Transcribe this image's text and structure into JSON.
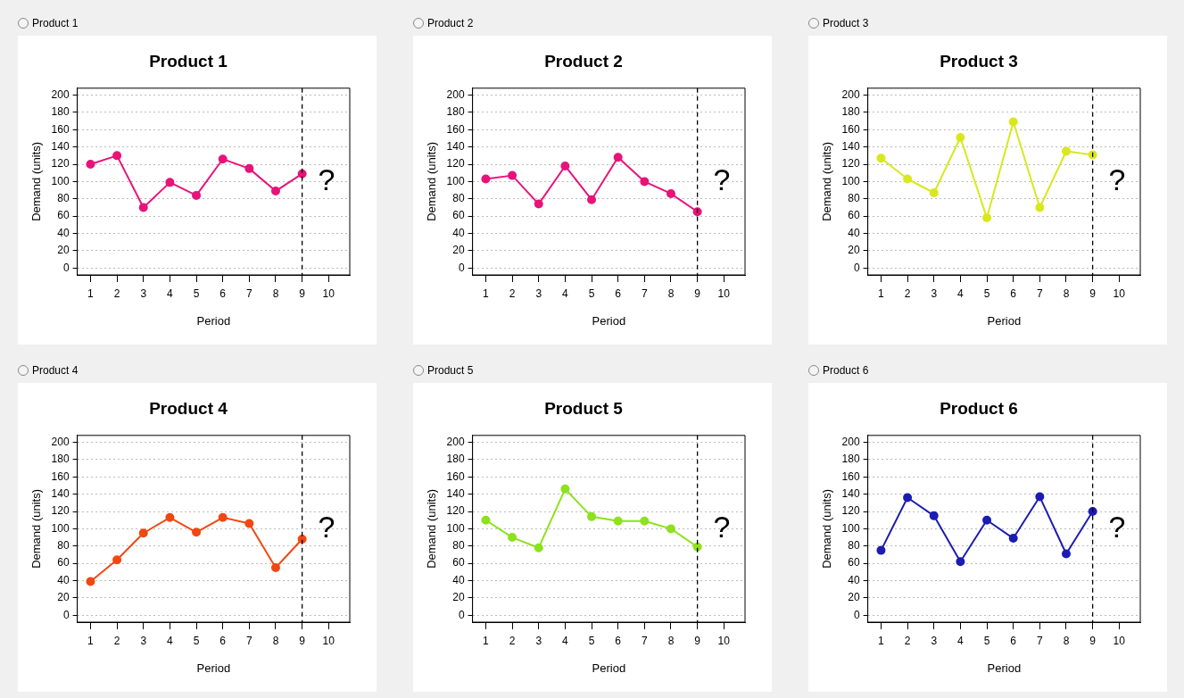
{
  "chart_data": [
    {
      "type": "line",
      "title": "Product 1",
      "annotations": [
        "Product 1",
        "?"
      ],
      "xlabel": "Period",
      "ylabel": "Demand (units)",
      "x": [
        1,
        2,
        3,
        4,
        5,
        6,
        7,
        8,
        9
      ],
      "series": [
        {
          "color": "#e8137a",
          "values": [
            120,
            130,
            70,
            99,
            84,
            126,
            115,
            89,
            109
          ]
        }
      ],
      "xlim": [
        0.5,
        10.8
      ],
      "xticks": [
        1,
        2,
        3,
        4,
        5,
        6,
        7,
        8,
        9,
        10
      ],
      "ylim": [
        -8,
        208
      ],
      "yticks": [
        0,
        20,
        40,
        60,
        80,
        100,
        120,
        140,
        160,
        180,
        200
      ],
      "grid": "y",
      "marker": "circle",
      "line_style": "solid",
      "legend": false,
      "ref_lines": [
        {
          "axis": "x",
          "value": 9,
          "color": "#000000",
          "line_style": "dashed"
        }
      ]
    },
    {
      "type": "line",
      "title": "Product 2",
      "annotations": [
        "Product 2",
        "?"
      ],
      "xlabel": "Period",
      "ylabel": "Demand (units)",
      "x": [
        1,
        2,
        3,
        4,
        5,
        6,
        7,
        8,
        9
      ],
      "series": [
        {
          "color": "#e8137a",
          "values": [
            103,
            107,
            74,
            118,
            79,
            128,
            100,
            86,
            65
          ]
        }
      ],
      "xlim": [
        0.5,
        10.8
      ],
      "xticks": [
        1,
        2,
        3,
        4,
        5,
        6,
        7,
        8,
        9,
        10
      ],
      "ylim": [
        -8,
        208
      ],
      "yticks": [
        0,
        20,
        40,
        60,
        80,
        100,
        120,
        140,
        160,
        180,
        200
      ],
      "grid": "y",
      "marker": "circle",
      "line_style": "solid",
      "legend": false,
      "ref_lines": [
        {
          "axis": "x",
          "value": 9,
          "color": "#000000",
          "line_style": "dashed"
        }
      ]
    },
    {
      "type": "line",
      "title": "Product 3",
      "annotations": [
        "Product 3",
        "?"
      ],
      "xlabel": "Period",
      "ylabel": "Demand (units)",
      "x": [
        1,
        2,
        3,
        4,
        5,
        6,
        7,
        8,
        9
      ],
      "series": [
        {
          "color": "#d8e81c",
          "values": [
            127,
            103,
            87,
            151,
            58,
            169,
            70,
            135,
            131
          ]
        }
      ],
      "xlim": [
        0.5,
        10.8
      ],
      "xticks": [
        1,
        2,
        3,
        4,
        5,
        6,
        7,
        8,
        9,
        10
      ],
      "ylim": [
        -8,
        208
      ],
      "yticks": [
        0,
        20,
        40,
        60,
        80,
        100,
        120,
        140,
        160,
        180,
        200
      ],
      "grid": "y",
      "marker": "circle",
      "line_style": "solid",
      "legend": false,
      "ref_lines": [
        {
          "axis": "x",
          "value": 9,
          "color": "#000000",
          "line_style": "dashed"
        }
      ]
    },
    {
      "type": "line",
      "title": "Product 4",
      "annotations": [
        "Product 4",
        "?"
      ],
      "xlabel": "Period",
      "ylabel": "Demand (units)",
      "x": [
        1,
        2,
        3,
        4,
        5,
        6,
        7,
        8,
        9
      ],
      "series": [
        {
          "color": "#f04812",
          "values": [
            39,
            64,
            95,
            113,
            96,
            113,
            106,
            55,
            88
          ]
        }
      ],
      "xlim": [
        0.5,
        10.8
      ],
      "xticks": [
        1,
        2,
        3,
        4,
        5,
        6,
        7,
        8,
        9,
        10
      ],
      "ylim": [
        -8,
        208
      ],
      "yticks": [
        0,
        20,
        40,
        60,
        80,
        100,
        120,
        140,
        160,
        180,
        200
      ],
      "grid": "y",
      "marker": "circle",
      "line_style": "solid",
      "legend": false,
      "ref_lines": [
        {
          "axis": "x",
          "value": 9,
          "color": "#000000",
          "line_style": "dashed"
        }
      ]
    },
    {
      "type": "line",
      "title": "Product 5",
      "annotations": [
        "Product 5",
        "?"
      ],
      "xlabel": "Period",
      "ylabel": "Demand (units)",
      "x": [
        1,
        2,
        3,
        4,
        5,
        6,
        7,
        8,
        9
      ],
      "series": [
        {
          "color": "#8ce21c",
          "values": [
            110,
            90,
            78,
            146,
            114,
            109,
            109,
            100,
            79
          ]
        }
      ],
      "xlim": [
        0.5,
        10.8
      ],
      "xticks": [
        1,
        2,
        3,
        4,
        5,
        6,
        7,
        8,
        9,
        10
      ],
      "ylim": [
        -8,
        208
      ],
      "yticks": [
        0,
        20,
        40,
        60,
        80,
        100,
        120,
        140,
        160,
        180,
        200
      ],
      "grid": "y",
      "marker": "circle",
      "line_style": "solid",
      "legend": false,
      "ref_lines": [
        {
          "axis": "x",
          "value": 9,
          "color": "#000000",
          "line_style": "dashed"
        }
      ]
    },
    {
      "type": "line",
      "title": "Product 6",
      "annotations": [
        "Product 6",
        "?"
      ],
      "xlabel": "Period",
      "ylabel": "Demand (units)",
      "x": [
        1,
        2,
        3,
        4,
        5,
        6,
        7,
        8,
        9
      ],
      "series": [
        {
          "color": "#1c1cb4",
          "values": [
            75,
            136,
            115,
            62,
            110,
            89,
            137,
            71,
            120
          ]
        }
      ],
      "xlim": [
        0.5,
        10.8
      ],
      "xticks": [
        1,
        2,
        3,
        4,
        5,
        6,
        7,
        8,
        9,
        10
      ],
      "ylim": [
        -8,
        208
      ],
      "yticks": [
        0,
        20,
        40,
        60,
        80,
        100,
        120,
        140,
        160,
        180,
        200
      ],
      "grid": "y",
      "marker": "circle",
      "line_style": "solid",
      "legend": false,
      "ref_lines": [
        {
          "axis": "x",
          "value": 9,
          "color": "#000000",
          "line_style": "dashed"
        }
      ]
    }
  ]
}
